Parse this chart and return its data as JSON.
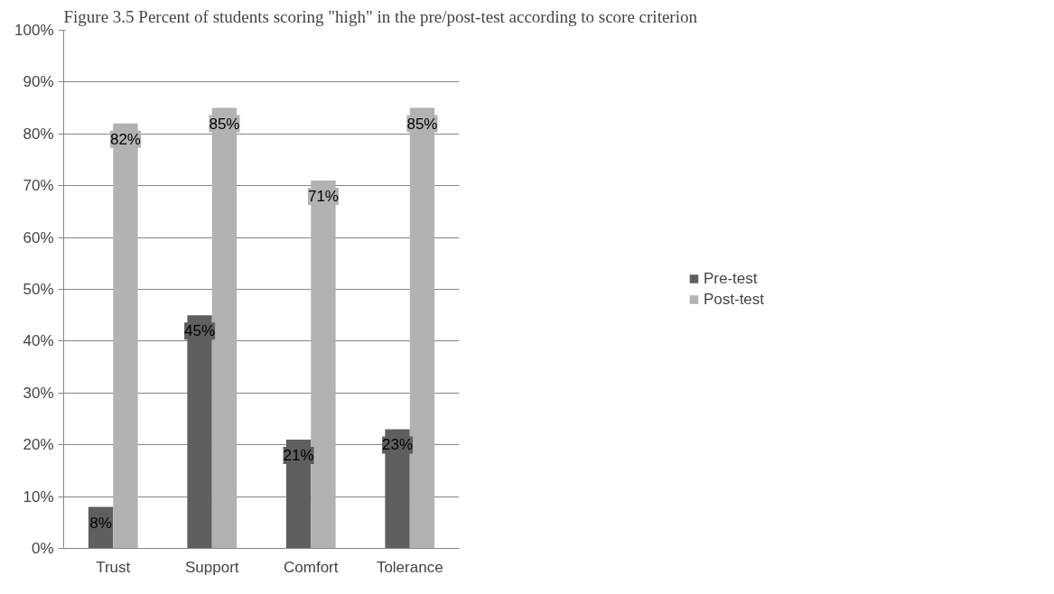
{
  "chart_data": {
    "type": "bar",
    "title": "Figure 3.5 Percent of students scoring \"high\" in the pre/post-test according to score criterion",
    "categories": [
      "Trust",
      "Support",
      "Comfort",
      "Tolerance"
    ],
    "series": [
      {
        "name": "Pre-test",
        "color": "#5f5f5f",
        "values": [
          8,
          45,
          21,
          23
        ]
      },
      {
        "name": "Post-test",
        "color": "#b2b2b2",
        "values": [
          82,
          85,
          71,
          85
        ]
      }
    ],
    "ylim": [
      0,
      100
    ],
    "yticks": [
      {
        "value": 0,
        "label": "0%"
      },
      {
        "value": 10,
        "label": "10%"
      },
      {
        "value": 20,
        "label": "20%"
      },
      {
        "value": 30,
        "label": "30%"
      },
      {
        "value": 40,
        "label": "40%"
      },
      {
        "value": 50,
        "label": "50%"
      },
      {
        "value": 60,
        "label": "60%"
      },
      {
        "value": 70,
        "label": "70%"
      },
      {
        "value": 80,
        "label": "80%"
      },
      {
        "value": 90,
        "label": "90%"
      },
      {
        "value": 100,
        "label": "100%"
      }
    ],
    "value_labels": [
      [
        "8%",
        "45%",
        "21%",
        "23%"
      ],
      [
        "82%",
        "85%",
        "71%",
        "85%"
      ]
    ],
    "grid": "y",
    "legend": "right"
  }
}
